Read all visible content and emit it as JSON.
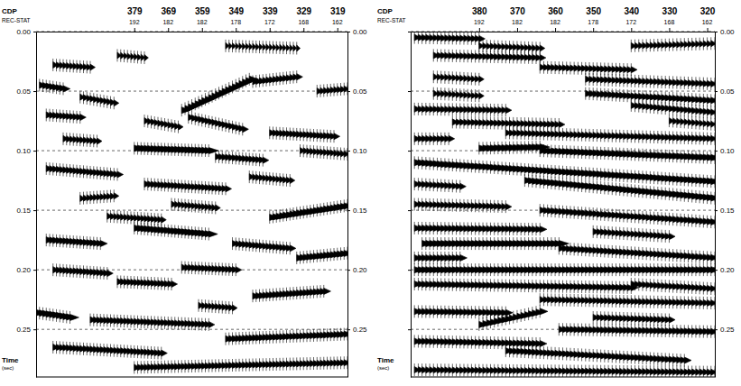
{
  "chart_data": [
    {
      "type": "wiggle",
      "xlabel": "CDP",
      "rec_stat_label": "REC-STAT",
      "ylabel": "Time (sec)",
      "xlim": [
        408,
        316
      ],
      "xticks": [
        379,
        369,
        359,
        349,
        339,
        329,
        319
      ],
      "rec_stat": [
        192,
        182,
        182,
        178,
        172,
        168,
        162
      ],
      "ylim": [
        0,
        0.29
      ],
      "yticks": [
        {
          "value": 0,
          "label": "0.00"
        },
        {
          "value": 0.05,
          "label": "0.05"
        },
        {
          "value": 0.1,
          "label": "0.10"
        },
        {
          "value": 0.15,
          "label": "0.15"
        },
        {
          "value": 0.2,
          "label": "0.20"
        },
        {
          "value": 0.25,
          "label": "0.25"
        }
      ],
      "grid": true,
      "color": "#000000",
      "events": [
        {
          "cdp": [
            352,
            331
          ],
          "t": [
            0.012,
            0.014
          ],
          "amp": 0.35
        },
        {
          "cdp": [
            403,
            392
          ],
          "t": [
            0.028,
            0.03
          ],
          "amp": 0.5
        },
        {
          "cdp": [
            384,
            376
          ],
          "t": [
            0.02,
            0.022
          ],
          "amp": 0.4
        },
        {
          "cdp": [
            365,
            345
          ],
          "t": [
            0.066,
            0.04
          ],
          "amp": 0.9
        },
        {
          "cdp": [
            344,
            331
          ],
          "t": [
            0.042,
            0.038
          ],
          "amp": 0.6
        },
        {
          "cdp": [
            325,
            316
          ],
          "t": [
            0.05,
            0.048
          ],
          "amp": 0.5
        },
        {
          "cdp": [
            407,
            400
          ],
          "t": [
            0.045,
            0.048
          ],
          "amp": 0.7
        },
        {
          "cdp": [
            395,
            385
          ],
          "t": [
            0.055,
            0.06
          ],
          "amp": 0.5
        },
        {
          "cdp": [
            405,
            395
          ],
          "t": [
            0.07,
            0.072
          ],
          "amp": 0.6
        },
        {
          "cdp": [
            376,
            366
          ],
          "t": [
            0.075,
            0.08
          ],
          "amp": 0.5
        },
        {
          "cdp": [
            363,
            347
          ],
          "t": [
            0.072,
            0.082
          ],
          "amp": 0.6
        },
        {
          "cdp": [
            339,
            320
          ],
          "t": [
            0.085,
            0.088
          ],
          "amp": 0.6
        },
        {
          "cdp": [
            379,
            357
          ],
          "t": [
            0.098,
            0.1
          ],
          "amp": 1.0
        },
        {
          "cdp": [
            355,
            341
          ],
          "t": [
            0.105,
            0.108
          ],
          "amp": 0.6
        },
        {
          "cdp": [
            330,
            316
          ],
          "t": [
            0.1,
            0.103
          ],
          "amp": 0.5
        },
        {
          "cdp": [
            405,
            384
          ],
          "t": [
            0.115,
            0.12
          ],
          "amp": 0.6
        },
        {
          "cdp": [
            376,
            352
          ],
          "t": [
            0.128,
            0.132
          ],
          "amp": 0.6
        },
        {
          "cdp": [
            345,
            333
          ],
          "t": [
            0.122,
            0.125
          ],
          "amp": 0.5
        },
        {
          "cdp": [
            395,
            385
          ],
          "t": [
            0.14,
            0.138
          ],
          "amp": 0.5
        },
        {
          "cdp": [
            339,
            316
          ],
          "t": [
            0.156,
            0.146
          ],
          "amp": 0.9
        },
        {
          "cdp": [
            379,
            357
          ],
          "t": [
            0.165,
            0.17
          ],
          "amp": 0.9
        },
        {
          "cdp": [
            405,
            389
          ],
          "t": [
            0.175,
            0.178
          ],
          "amp": 0.7
        },
        {
          "cdp": [
            350,
            333
          ],
          "t": [
            0.178,
            0.182
          ],
          "amp": 0.6
        },
        {
          "cdp": [
            331,
            316
          ],
          "t": [
            0.19,
            0.186
          ],
          "amp": 0.8
        },
        {
          "cdp": [
            403,
            387
          ],
          "t": [
            0.2,
            0.203
          ],
          "amp": 0.6
        },
        {
          "cdp": [
            365,
            349
          ],
          "t": [
            0.198,
            0.2
          ],
          "amp": 0.6
        },
        {
          "cdp": [
            384,
            368
          ],
          "t": [
            0.21,
            0.212
          ],
          "amp": 0.6
        },
        {
          "cdp": [
            344,
            323
          ],
          "t": [
            0.222,
            0.218
          ],
          "amp": 0.7
        },
        {
          "cdp": [
            408,
            398
          ],
          "t": [
            0.236,
            0.24
          ],
          "amp": 0.9
        },
        {
          "cdp": [
            392,
            357
          ],
          "t": [
            0.242,
            0.246
          ],
          "amp": 0.6
        },
        {
          "cdp": [
            352,
            316
          ],
          "t": [
            0.258,
            0.254
          ],
          "amp": 0.7
        },
        {
          "cdp": [
            403,
            371
          ],
          "t": [
            0.265,
            0.27
          ],
          "amp": 0.6
        },
        {
          "cdp": [
            379,
            316
          ],
          "t": [
            0.282,
            0.278
          ],
          "amp": 0.6
        },
        {
          "cdp": [
            387,
            371
          ],
          "t": [
            0.155,
            0.158
          ],
          "amp": 0.5
        },
        {
          "cdp": [
            368,
            355
          ],
          "t": [
            0.145,
            0.148
          ],
          "amp": 0.5
        },
        {
          "cdp": [
            400,
            390
          ],
          "t": [
            0.09,
            0.092
          ],
          "amp": 0.5
        },
        {
          "cdp": [
            360,
            350
          ],
          "t": [
            0.23,
            0.232
          ],
          "amp": 0.5
        }
      ]
    },
    {
      "type": "wiggle",
      "xlabel": "CDP",
      "rec_stat_label": "REC-STAT",
      "ylabel": "Time (sec)",
      "xlim": [
        398,
        318
      ],
      "xticks": [
        380,
        370,
        360,
        350,
        340,
        330,
        320
      ],
      "rec_stat": [
        192,
        182,
        182,
        178,
        172,
        168,
        162
      ],
      "ylim": [
        0,
        0.29
      ],
      "yticks": [
        {
          "value": 0,
          "label": "0.00"
        },
        {
          "value": 0.05,
          "label": "0.05"
        },
        {
          "value": 0.1,
          "label": "0.10"
        },
        {
          "value": 0.15,
          "label": "0.15"
        },
        {
          "value": 0.2,
          "label": "0.20"
        },
        {
          "value": 0.25,
          "label": "0.25"
        }
      ],
      "grid": true,
      "color": "#000000",
      "events": [
        {
          "cdp": [
            397,
            380
          ],
          "t": [
            0.005,
            0.006
          ],
          "amp": 0.6
        },
        {
          "cdp": [
            392,
            364
          ],
          "t": [
            0.02,
            0.022
          ],
          "amp": 0.6
        },
        {
          "cdp": [
            364,
            340
          ],
          "t": [
            0.03,
            0.032
          ],
          "amp": 0.6
        },
        {
          "cdp": [
            352,
            318
          ],
          "t": [
            0.04,
            0.044
          ],
          "amp": 0.6
        },
        {
          "cdp": [
            352,
            318
          ],
          "t": [
            0.052,
            0.058
          ],
          "amp": 0.7
        },
        {
          "cdp": [
            340,
            318
          ],
          "t": [
            0.062,
            0.068
          ],
          "amp": 0.6
        },
        {
          "cdp": [
            397,
            373
          ],
          "t": [
            0.065,
            0.066
          ],
          "amp": 0.6
        },
        {
          "cdp": [
            387,
            359
          ],
          "t": [
            0.076,
            0.078
          ],
          "amp": 0.6
        },
        {
          "cdp": [
            373,
            318
          ],
          "t": [
            0.085,
            0.09
          ],
          "amp": 0.6
        },
        {
          "cdp": [
            380,
            364
          ],
          "t": [
            0.098,
            0.097
          ],
          "amp": 1.0
        },
        {
          "cdp": [
            364,
            318
          ],
          "t": [
            0.1,
            0.106
          ],
          "amp": 0.9
        },
        {
          "cdp": [
            397,
            318
          ],
          "t": [
            0.11,
            0.126
          ],
          "amp": 0.9
        },
        {
          "cdp": [
            368,
            318
          ],
          "t": [
            0.125,
            0.14
          ],
          "amp": 0.9
        },
        {
          "cdp": [
            397,
            373
          ],
          "t": [
            0.145,
            0.147
          ],
          "amp": 0.6
        },
        {
          "cdp": [
            364,
            318
          ],
          "t": [
            0.15,
            0.16
          ],
          "amp": 0.7
        },
        {
          "cdp": [
            397,
            364
          ],
          "t": [
            0.165,
            0.166
          ],
          "amp": 0.7
        },
        {
          "cdp": [
            395,
            359
          ],
          "t": [
            0.178,
            0.178
          ],
          "amp": 1.0
        },
        {
          "cdp": [
            359,
            318
          ],
          "t": [
            0.182,
            0.19
          ],
          "amp": 0.7
        },
        {
          "cdp": [
            397,
            318
          ],
          "t": [
            0.2,
            0.2
          ],
          "amp": 0.9
        },
        {
          "cdp": [
            397,
            340
          ],
          "t": [
            0.212,
            0.215
          ],
          "amp": 0.7
        },
        {
          "cdp": [
            364,
            318
          ],
          "t": [
            0.225,
            0.228
          ],
          "amp": 0.6
        },
        {
          "cdp": [
            397,
            373
          ],
          "t": [
            0.235,
            0.236
          ],
          "amp": 0.7
        },
        {
          "cdp": [
            380,
            364
          ],
          "t": [
            0.246,
            0.235
          ],
          "amp": 0.8
        },
        {
          "cdp": [
            359,
            318
          ],
          "t": [
            0.25,
            0.252
          ],
          "amp": 0.7
        },
        {
          "cdp": [
            397,
            364
          ],
          "t": [
            0.26,
            0.262
          ],
          "amp": 0.7
        },
        {
          "cdp": [
            373,
            326
          ],
          "t": [
            0.268,
            0.276
          ],
          "amp": 0.7
        },
        {
          "cdp": [
            397,
            318
          ],
          "t": [
            0.284,
            0.286
          ],
          "amp": 0.6
        },
        {
          "cdp": [
            380,
            364
          ],
          "t": [
            0.012,
            0.014
          ],
          "amp": 0.5
        },
        {
          "cdp": [
            340,
            318
          ],
          "t": [
            0.012,
            0.01
          ],
          "amp": 0.5
        },
        {
          "cdp": [
            330,
            318
          ],
          "t": [
            0.075,
            0.078
          ],
          "amp": 0.5
        },
        {
          "cdp": [
            392,
            380
          ],
          "t": [
            0.038,
            0.04
          ],
          "amp": 0.5
        },
        {
          "cdp": [
            392,
            380
          ],
          "t": [
            0.052,
            0.054
          ],
          "amp": 0.5
        },
        {
          "cdp": [
            397,
            388
          ],
          "t": [
            0.09,
            0.09
          ],
          "amp": 0.6
        },
        {
          "cdp": [
            397,
            385
          ],
          "t": [
            0.128,
            0.13
          ],
          "amp": 0.6
        },
        {
          "cdp": [
            350,
            330
          ],
          "t": [
            0.168,
            0.172
          ],
          "amp": 0.6
        },
        {
          "cdp": [
            397,
            385
          ],
          "t": [
            0.19,
            0.19
          ],
          "amp": 0.7
        },
        {
          "cdp": [
            340,
            318
          ],
          "t": [
            0.212,
            0.216
          ],
          "amp": 0.6
        },
        {
          "cdp": [
            350,
            330
          ],
          "t": [
            0.24,
            0.242
          ],
          "amp": 0.6
        }
      ]
    }
  ]
}
